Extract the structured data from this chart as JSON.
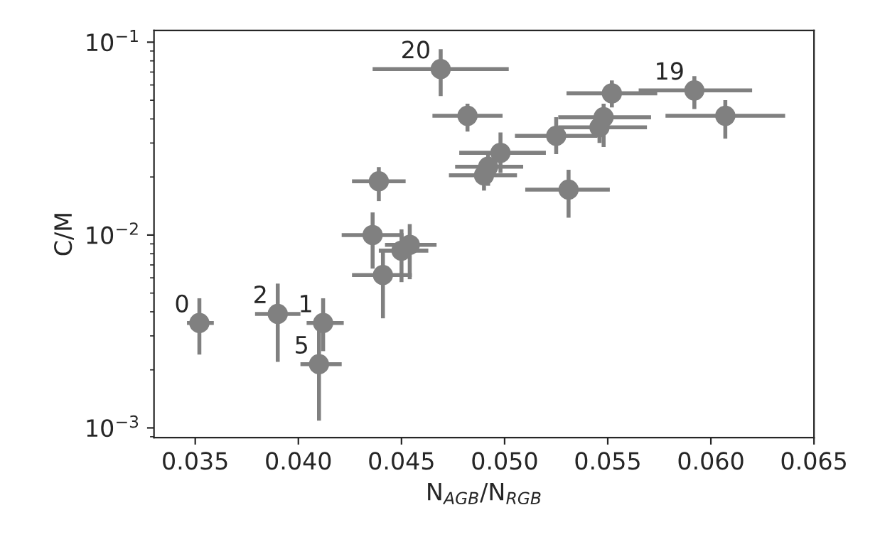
{
  "chart_data": {
    "type": "scatter",
    "xlabel": "N$_{AGB}$/N$_{RGB}$",
    "ylabel": "C/M",
    "log": "y",
    "marker": "circle",
    "grid": false,
    "legend": false,
    "xlim": [
      0.033,
      0.065
    ],
    "ylim": [
      0.00089,
      0.115
    ],
    "xticks": [
      {
        "value": 0.035,
        "label": "0.035"
      },
      {
        "value": 0.04,
        "label": "0.040"
      },
      {
        "value": 0.045,
        "label": "0.045"
      },
      {
        "value": 0.05,
        "label": "0.050"
      },
      {
        "value": 0.055,
        "label": "0.055"
      },
      {
        "value": 0.06,
        "label": "0.060"
      },
      {
        "value": 0.065,
        "label": "0.065"
      }
    ],
    "yticks": [
      {
        "value": 0.001,
        "label": "10$^{−3}$"
      },
      {
        "value": 0.01,
        "label": "10$^{−2}$"
      },
      {
        "value": 0.1,
        "label": "10$^{−1}$"
      }
    ],
    "series": [
      {
        "color": "#808080",
        "x": [
          0.0352,
          0.039,
          0.0412,
          0.041,
          0.0436,
          0.0439,
          0.0441,
          0.045,
          0.0454,
          0.0469,
          0.0482,
          0.0498,
          0.0492,
          0.049,
          0.0525,
          0.0531,
          0.0548,
          0.0546,
          0.0552,
          0.0592,
          0.0607
        ],
        "values": [
          0.0035,
          0.0039,
          0.0035,
          0.00214,
          0.01,
          0.019,
          0.0062,
          0.0083,
          0.0089,
          0.0725,
          0.0415,
          0.0267,
          0.0226,
          0.0204,
          0.0327,
          0.0172,
          0.0408,
          0.0362,
          0.0543,
          0.0562,
          0.0415
        ],
        "errors": [
          [
            0.0024,
            0.0047
          ],
          [
            0.0022,
            0.0056
          ],
          [
            0.0025,
            0.0047
          ],
          [
            0.00109,
            0.0032
          ],
          [
            0.0067,
            0.0131
          ],
          [
            0.015,
            0.0225
          ],
          [
            0.0037,
            0.0085
          ],
          [
            0.0057,
            0.0107
          ],
          [
            0.0059,
            0.0114
          ],
          [
            0.0526,
            0.092
          ],
          [
            0.0344,
            0.048
          ],
          [
            0.021,
            0.034
          ],
          [
            0.018,
            0.0265
          ],
          [
            0.017,
            0.024
          ],
          [
            0.0263,
            0.0408
          ],
          [
            0.0123,
            0.0218
          ],
          [
            0.0286,
            0.048
          ],
          [
            0.03,
            0.044
          ],
          [
            0.0459,
            0.0633
          ],
          [
            0.045,
            0.0666
          ],
          [
            0.0316,
            0.05
          ]
        ],
        "xerrors": [
          [
            0.0346,
            0.0359
          ],
          [
            0.0379,
            0.0401
          ],
          [
            0.0404,
            0.0422
          ],
          [
            0.0401,
            0.0421
          ],
          [
            0.0421,
            0.0451
          ],
          [
            0.0426,
            0.0452
          ],
          [
            0.0426,
            0.0455
          ],
          [
            0.0439,
            0.0463
          ],
          [
            0.0442,
            0.0467
          ],
          [
            0.0436,
            0.0502
          ],
          [
            0.0465,
            0.0499
          ],
          [
            0.0478,
            0.052
          ],
          [
            0.0476,
            0.0509
          ],
          [
            0.0473,
            0.0506
          ],
          [
            0.0505,
            0.0545
          ],
          [
            0.051,
            0.0551
          ],
          [
            0.0526,
            0.0571
          ],
          [
            0.0526,
            0.0569
          ],
          [
            0.053,
            0.0574
          ],
          [
            0.0565,
            0.062
          ],
          [
            0.0578,
            0.0636
          ]
        ]
      }
    ],
    "annotations": [
      {
        "text": "0",
        "x": 0.0352,
        "y": 0.0035
      },
      {
        "text": "2",
        "x": 0.039,
        "y": 0.0039
      },
      {
        "text": "1",
        "x": 0.0412,
        "y": 0.0035
      },
      {
        "text": "5",
        "x": 0.041,
        "y": 0.00214
      },
      {
        "text": "20",
        "x": 0.0469,
        "y": 0.0725
      },
      {
        "text": "19",
        "x": 0.0592,
        "y": 0.0562
      }
    ]
  }
}
